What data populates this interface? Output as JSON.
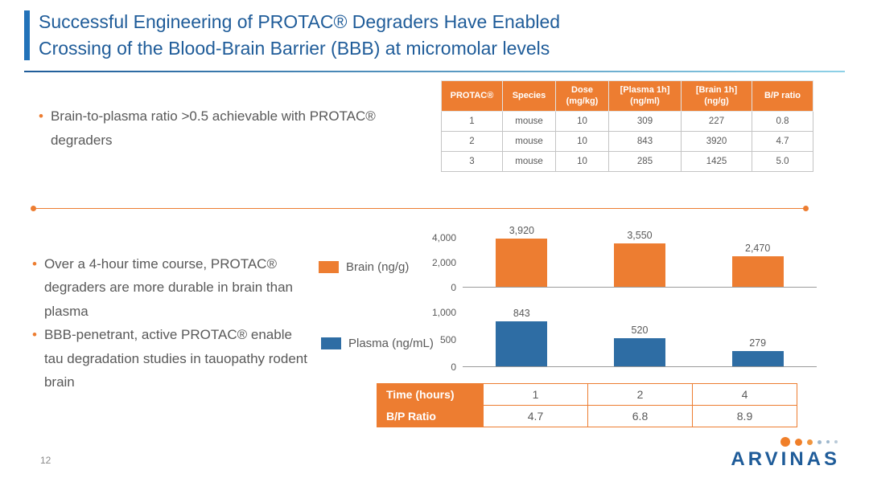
{
  "slide": {
    "title_line1": "Successful Engineering of PROTAC®  Degraders Have Enabled",
    "title_line2": "Crossing of the Blood-Brain Barrier (BBB) at micromolar levels",
    "page_number": "12",
    "logo_text": "ARVINAS"
  },
  "colors": {
    "title_blue": "#1f5c99",
    "accent_orange": "#ed7d31",
    "bar_blue": "#2e6da4",
    "body_gray": "#595959"
  },
  "bullets_top": [
    "Brain-to-plasma ratio >0.5 achievable with PROTAC® degraders"
  ],
  "bullets_bottom": [
    "Over a 4-hour time course, PROTAC® degraders are more durable in brain than plasma",
    "BBB-penetrant, active PROTAC® enable tau degradation studies in tauopathy rodent brain"
  ],
  "pk_table": {
    "headers": [
      "PROTAC®",
      "Species",
      "Dose (mg/kg)",
      "[Plasma 1h] (ng/ml)",
      "[Brain 1h] (ng/g)",
      "B/P ratio"
    ],
    "rows": [
      [
        "1",
        "mouse",
        "10",
        "309",
        "227",
        "0.8"
      ],
      [
        "2",
        "mouse",
        "10",
        "843",
        "3920",
        "4.7"
      ],
      [
        "3",
        "mouse",
        "10",
        "285",
        "1425",
        "5.0"
      ]
    ]
  },
  "legend": [
    {
      "label": "Brain (ng/g)",
      "color": "#ed7d31"
    },
    {
      "label": "Plasma (ng/mL)",
      "color": "#2e6da4"
    }
  ],
  "chart_data": [
    {
      "type": "bar",
      "series_name": "Brain (ng/g)",
      "categories": [
        "1",
        "2",
        "4"
      ],
      "xlabel": "Time (hours)",
      "values": [
        3920,
        3550,
        2470
      ],
      "value_labels": [
        "3,920",
        "3,550",
        "2,470"
      ],
      "ylim": [
        0,
        4000
      ],
      "ytick_labels": [
        "4,000",
        "2,000",
        "0"
      ],
      "bar_color": "#ed7d31",
      "grid": false,
      "legend_position": "left"
    },
    {
      "type": "bar",
      "series_name": "Plasma (ng/mL)",
      "categories": [
        "1",
        "2",
        "4"
      ],
      "xlabel": "Time (hours)",
      "values": [
        843,
        520,
        279
      ],
      "value_labels": [
        "843",
        "520",
        "279"
      ],
      "ylim": [
        0,
        1000
      ],
      "ytick_labels": [
        "1,000",
        "500",
        "0"
      ],
      "bar_color": "#2e6da4",
      "grid": false,
      "legend_position": "left"
    }
  ],
  "bp_table": {
    "rows": [
      {
        "header": "Time (hours)",
        "cells": [
          "1",
          "2",
          "4"
        ]
      },
      {
        "header": "B/P Ratio",
        "cells": [
          "4.7",
          "6.8",
          "8.9"
        ]
      }
    ]
  }
}
